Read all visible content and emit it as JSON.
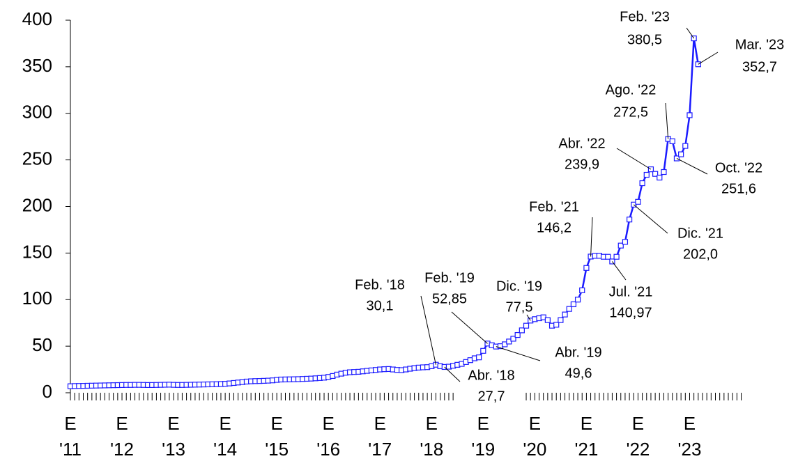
{
  "chart_data": {
    "type": "line",
    "categories": [
      "E\n'11",
      null,
      null,
      null,
      null,
      null,
      null,
      null,
      null,
      null,
      null,
      null,
      "E\n'12",
      null,
      null,
      null,
      null,
      null,
      null,
      null,
      null,
      null,
      null,
      null,
      "E\n'13",
      null,
      null,
      null,
      null,
      null,
      null,
      null,
      null,
      null,
      null,
      null,
      "E\n'14",
      null,
      null,
      null,
      null,
      null,
      null,
      null,
      null,
      null,
      null,
      null,
      "E\n'15",
      null,
      null,
      null,
      null,
      null,
      null,
      null,
      null,
      null,
      null,
      null,
      "E\n'16",
      null,
      null,
      null,
      null,
      null,
      null,
      null,
      null,
      null,
      null,
      null,
      "E\n'17",
      null,
      null,
      null,
      null,
      null,
      null,
      null,
      null,
      null,
      null,
      null,
      "E\n'18",
      null,
      null,
      null,
      null,
      null,
      null,
      null,
      null,
      null,
      null,
      null,
      "E\n'19",
      null,
      null,
      null,
      null,
      null,
      null,
      null,
      null,
      null,
      null,
      null,
      "E\n'20",
      null,
      null,
      null,
      null,
      null,
      null,
      null,
      null,
      null,
      null,
      null,
      "E\n'21",
      null,
      null,
      null,
      null,
      null,
      null,
      null,
      null,
      null,
      null,
      null,
      "E\n'22",
      null,
      null,
      null,
      null,
      null,
      null,
      null,
      null,
      null,
      null,
      null,
      "E\n'23",
      null,
      null
    ],
    "values": [
      7,
      7.2,
      7.3,
      7.4,
      7.5,
      7.6,
      7.7,
      7.8,
      7.9,
      8,
      8.1,
      8.2,
      8.3,
      8.4,
      8.4,
      8.5,
      8.5,
      8.4,
      8.3,
      8.3,
      8.4,
      8.5,
      8.6,
      8.7,
      8.5,
      8.4,
      8.4,
      8.5,
      8.6,
      8.7,
      8.8,
      8.9,
      9,
      9.1,
      9.2,
      9.4,
      9.6,
      10,
      10.5,
      11,
      11.5,
      12,
      12.3,
      12.5,
      12.6,
      12.8,
      13,
      13.3,
      13.8,
      14.2,
      14.3,
      14.4,
      14.5,
      14.6,
      14.8,
      15,
      15.2,
      15.5,
      15.8,
      16.2,
      17,
      18,
      19.5,
      20.5,
      21.5,
      22,
      22.3,
      22.5,
      23,
      23.5,
      24,
      24.5,
      25,
      25.3,
      25.5,
      25,
      24.5,
      24.3,
      25,
      25.8,
      26.5,
      27,
      27.3,
      27.5,
      28.5,
      30.1,
      28.5,
      27.7,
      28,
      29,
      30,
      31,
      33,
      35,
      37,
      38,
      45,
      52.85,
      51,
      49.6,
      50,
      52,
      55,
      58,
      62,
      67,
      72,
      77.5,
      79,
      80,
      81,
      78,
      72,
      73,
      78,
      84,
      90,
      95,
      100,
      110,
      134,
      146.2,
      147,
      147,
      146,
      146,
      140.97,
      146,
      158,
      162,
      186,
      202.0,
      205,
      225,
      234,
      239.9,
      235,
      231,
      237,
      272.5,
      270,
      251.6,
      256,
      265,
      298,
      380.5,
      352.7
    ],
    "point_labels": {
      "85": "Feb. '18",
      "87": "Abr. '18",
      "97": "Feb. '19",
      "99": "Abr. '19",
      "107": "Dic. '19",
      "121": "Feb. '21",
      "126": "Jul. '21",
      "131": "Dic. '21",
      "135": "Abr. '22",
      "139": "Ago. '22",
      "141": "Oct. '22",
      "145": "Feb. '23",
      "146": "Mar. '23"
    },
    "value_labels": {
      "85": "30,1",
      "87": "27,7",
      "97": "52,85",
      "99": "49,6",
      "107": "77,5",
      "121": "146,2",
      "126": "140,97",
      "131": "202,0",
      "135": "239,9",
      "139": "272,5",
      "141": "251,6",
      "145": "380,5",
      "146": "352,7"
    },
    "color": "#1a1aff",
    "ylim": [
      0,
      400
    ],
    "yticks": [
      0,
      50,
      100,
      150,
      200,
      250,
      300,
      350,
      400
    ]
  }
}
